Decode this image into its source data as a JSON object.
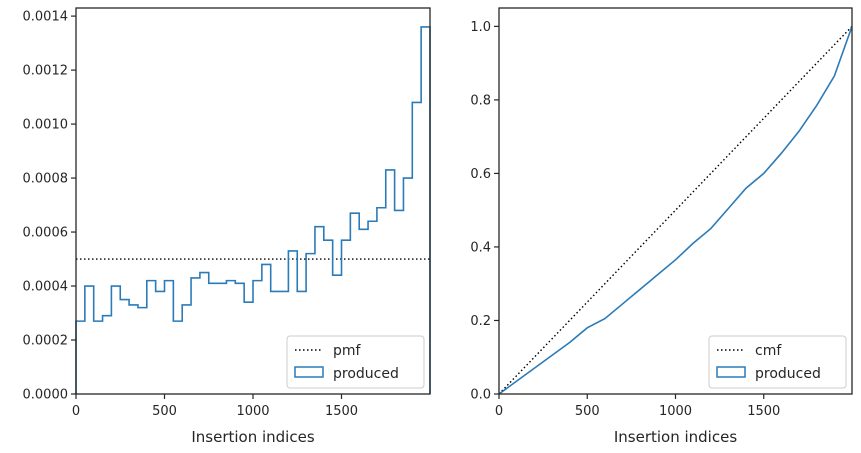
{
  "colors": {
    "produced": "#2b7bb9",
    "reference": "#000000",
    "axes": "#262626"
  },
  "chart_data": [
    {
      "type": "histogram",
      "xlabel": "Insertion indices",
      "ylabel": "",
      "xlim": [
        0,
        2000
      ],
      "ylim": [
        0,
        0.00143
      ],
      "xticks": [
        0,
        500,
        1000,
        1500
      ],
      "xtick_labels": [
        "0",
        "500",
        "1000",
        "1500"
      ],
      "yticks": [
        0,
        0.0002,
        0.0004,
        0.0006,
        0.0008,
        0.001,
        0.0012,
        0.0014
      ],
      "ytick_labels": [
        "0.0000",
        "0.0002",
        "0.0004",
        "0.0006",
        "0.0008",
        "0.0010",
        "0.0012",
        "0.0014"
      ],
      "grid": false,
      "legend_position": "lower-right",
      "legend": [
        "pmf",
        "produced"
      ],
      "series": [
        {
          "name": "pmf",
          "style": "dotted",
          "x": [
            0,
            2000
          ],
          "y": [
            0.0005,
            0.0005
          ]
        },
        {
          "name": "produced",
          "style": "step",
          "bin_edges": [
            0,
            50,
            100,
            150,
            200,
            250,
            300,
            350,
            400,
            450,
            500,
            550,
            600,
            650,
            700,
            750,
            800,
            850,
            900,
            950,
            1000,
            1050,
            1100,
            1150,
            1200,
            1250,
            1300,
            1350,
            1400,
            1450,
            1500,
            1550,
            1600,
            1650,
            1700,
            1750,
            1800,
            1850,
            1900,
            1950,
            2000
          ],
          "values": [
            0.00027,
            0.0004,
            0.00027,
            0.00029,
            0.0004,
            0.00035,
            0.00033,
            0.00032,
            0.00042,
            0.00038,
            0.00042,
            0.00027,
            0.00033,
            0.00043,
            0.00045,
            0.00041,
            0.00041,
            0.00042,
            0.00041,
            0.00034,
            0.00042,
            0.00048,
            0.00038,
            0.00038,
            0.00053,
            0.00038,
            0.00052,
            0.00062,
            0.00057,
            0.00044,
            0.00057,
            0.00067,
            0.00061,
            0.00064,
            0.00069,
            0.00083,
            0.00068,
            0.0008,
            0.00108,
            0.00136
          ]
        }
      ]
    },
    {
      "type": "line",
      "xlabel": "Insertion indices",
      "ylabel": "",
      "xlim": [
        0,
        2000
      ],
      "ylim": [
        0,
        1.05
      ],
      "xticks": [
        0,
        500,
        1000,
        1500
      ],
      "xtick_labels": [
        "0",
        "500",
        "1000",
        "1500"
      ],
      "yticks": [
        0,
        0.2,
        0.4,
        0.6,
        0.8,
        1.0
      ],
      "ytick_labels": [
        "0.0",
        "0.2",
        "0.4",
        "0.6",
        "0.8",
        "1.0"
      ],
      "grid": false,
      "legend_position": "lower-right",
      "legend": [
        "cmf",
        "produced"
      ],
      "series": [
        {
          "name": "cmf",
          "style": "dotted",
          "x": [
            0,
            2000
          ],
          "y": [
            0,
            1
          ]
        },
        {
          "name": "produced",
          "style": "step",
          "x": [
            0,
            100,
            200,
            300,
            400,
            500,
            600,
            700,
            800,
            900,
            1000,
            1100,
            1200,
            1300,
            1400,
            1500,
            1600,
            1700,
            1800,
            1900,
            2000
          ],
          "y": [
            0,
            0.035,
            0.07,
            0.105,
            0.14,
            0.18,
            0.205,
            0.245,
            0.285,
            0.325,
            0.365,
            0.41,
            0.45,
            0.505,
            0.56,
            0.6,
            0.655,
            0.715,
            0.785,
            0.865,
            1.0
          ]
        }
      ]
    }
  ]
}
